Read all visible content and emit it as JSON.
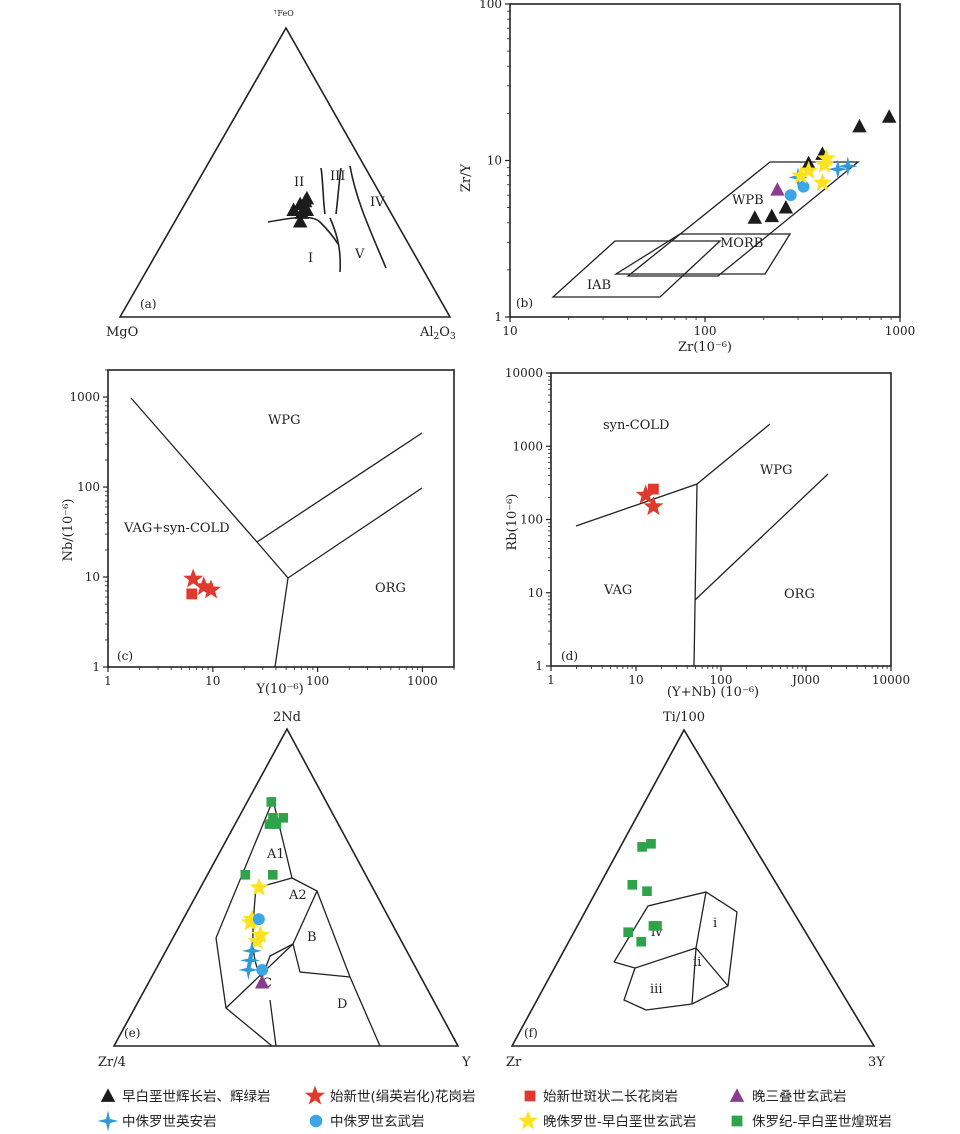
{
  "colors": {
    "black_triangle": "#1c1c1c",
    "red_star": "#e03a2f",
    "red_square": "#e03a2f",
    "purple_triangle": "#8a3d8f",
    "blue_cross": "#2e9ad8",
    "blue_circle": "#3aa6e6",
    "yellow_star": "#ffe21f",
    "green_square": "#2fa24a"
  },
  "legend": [
    {
      "symbol": "black_triangle",
      "label": "早白垩世辉长岩、辉绿岩"
    },
    {
      "symbol": "red_star",
      "label": "始新世(绢英岩化)花岗岩"
    },
    {
      "symbol": "red_square",
      "label": "始新世斑状二长花岗岩"
    },
    {
      "symbol": "purple_triangle",
      "label": "晚三叠世玄武岩"
    },
    {
      "symbol": "blue_cross",
      "label": "中侏罗世英安岩"
    },
    {
      "symbol": "blue_circle",
      "label": "中侏罗世玄武岩"
    },
    {
      "symbol": "yellow_star",
      "label": "晚侏罗世-早白垩世玄武岩"
    },
    {
      "symbol": "green_square",
      "label": "侏罗纪-早白垩世煌斑岩"
    }
  ],
  "chart_data": [
    {
      "panel": "(a)",
      "type": "scatter",
      "subtype": "ternary",
      "vertices": {
        "top": "ᵀFeO",
        "left": "MgO",
        "right_main": "Al",
        "right_sub1": "2",
        "right_mid": "O",
        "right_sub2": "3"
      },
      "fields": [
        "I",
        "II",
        "III",
        "IV",
        "V"
      ],
      "series": [
        {
          "symbol": "black_triangle",
          "points": [
            {
              "FeO": 0.37,
              "MgO": 0.29,
              "Al2O3": 0.34
            },
            {
              "FeO": 0.39,
              "MgO": 0.26,
              "Al2O3": 0.35
            },
            {
              "FeO": 0.4,
              "MgO": 0.24,
              "Al2O3": 0.36
            },
            {
              "FeO": 0.37,
              "MgO": 0.25,
              "Al2O3": 0.38
            },
            {
              "FeO": 0.36,
              "MgO": 0.27,
              "Al2O3": 0.37
            },
            {
              "FeO": 0.33,
              "MgO": 0.29,
              "Al2O3": 0.38
            },
            {
              "FeO": 0.41,
              "MgO": 0.23,
              "Al2O3": 0.36
            }
          ]
        }
      ]
    },
    {
      "panel": "(b)",
      "type": "scatter",
      "xscale": "log",
      "yscale": "log",
      "xlim": [
        10,
        1000
      ],
      "ylim": [
        1,
        100
      ],
      "xticks": [
        "10",
        "100",
        "1000"
      ],
      "yticks": [
        "1",
        "10",
        "100"
      ],
      "xlabel": "Zr(10⁻⁶)",
      "ylabel": "Zr/Y",
      "fields": [
        "IAB",
        "MORB",
        "WPB"
      ],
      "series": [
        {
          "symbol": "black_triangle",
          "points": [
            [
              180,
              4.3
            ],
            [
              220,
              4.4
            ],
            [
              260,
              5.0
            ],
            [
              340,
              9.6
            ],
            [
              400,
              11.0
            ],
            [
              620,
              16.5
            ],
            [
              880,
              19.0
            ]
          ]
        },
        {
          "symbol": "purple_triangle",
          "points": [
            [
              235,
              6.5
            ]
          ]
        },
        {
          "symbol": "blue_circle",
          "points": [
            [
              275,
              6.0
            ],
            [
              320,
              6.8
            ]
          ]
        },
        {
          "symbol": "blue_cross",
          "points": [
            [
              300,
              7.8
            ],
            [
              480,
              8.8
            ],
            [
              540,
              9.2
            ]
          ]
        },
        {
          "symbol": "yellow_star",
          "points": [
            [
              310,
              8.0
            ],
            [
              340,
              8.6
            ],
            [
              400,
              7.2
            ],
            [
              410,
              9.4
            ],
            [
              420,
              10.3
            ]
          ]
        }
      ]
    },
    {
      "panel": "(c)",
      "type": "scatter",
      "xscale": "log",
      "yscale": "log",
      "xlim": [
        1,
        2000
      ],
      "ylim": [
        1,
        2000
      ],
      "xticks": [
        "1",
        "10",
        "100",
        "1000"
      ],
      "yticks": [
        "1",
        "10",
        "100",
        "1000"
      ],
      "xlabel": "Y(10⁻⁶)",
      "ylabel": "Nb/(10⁻⁶)",
      "fields": [
        "WPG",
        "VAG+syn-COLD",
        "ORG"
      ],
      "series": [
        {
          "symbol": "red_star",
          "points": [
            [
              6.5,
              9.5
            ],
            [
              8.2,
              7.8
            ],
            [
              9.6,
              7.2
            ]
          ]
        },
        {
          "symbol": "red_square",
          "points": [
            [
              6.3,
              6.5
            ]
          ]
        }
      ]
    },
    {
      "panel": "(d)",
      "type": "scatter",
      "xscale": "log",
      "yscale": "log",
      "xlim": [
        1,
        10000
      ],
      "ylim": [
        1,
        10000
      ],
      "xticks": [
        "1",
        "10",
        "100",
        "J000",
        "10000"
      ],
      "yticks": [
        "1",
        "10",
        "100",
        "1000",
        "10000"
      ],
      "xlabel": "(Y+Nb) (10⁻⁶)",
      "ylabel": "Rb(10⁻⁶)",
      "fields": [
        "syn-COLD",
        "WPG",
        "VAG",
        "ORG"
      ],
      "series": [
        {
          "symbol": "red_star",
          "points": [
            [
              13,
              215
            ],
            [
              16,
              150
            ]
          ]
        },
        {
          "symbol": "red_square",
          "points": [
            [
              16,
              260
            ]
          ]
        }
      ]
    },
    {
      "panel": "(e)",
      "type": "scatter",
      "subtype": "ternary",
      "vertices": {
        "top": "2Nd",
        "left": "Zr/4",
        "right": "Y"
      },
      "fields": [
        "A1",
        "A2",
        "B",
        "C",
        "D"
      ],
      "series": [
        {
          "symbol": "green_square",
          "points": [
            {
              "Nd": 0.72,
              "Zr": 0.18,
              "Y": 0.1
            },
            {
              "Nd": 0.77,
              "Zr": 0.16,
              "Y": 0.07
            },
            {
              "Nd": 0.72,
              "Zr": 0.15,
              "Y": 0.13
            },
            {
              "Nd": 0.7,
              "Zr": 0.18,
              "Y": 0.12
            },
            {
              "Nd": 0.7,
              "Zr": 0.2,
              "Y": 0.1
            },
            {
              "Nd": 0.54,
              "Zr": 0.27,
              "Y": 0.19
            },
            {
              "Nd": 0.54,
              "Zr": 0.35,
              "Y": 0.11
            }
          ]
        },
        {
          "symbol": "yellow_star",
          "points": [
            {
              "Nd": 0.5,
              "Zr": 0.33,
              "Y": 0.17
            },
            {
              "Nd": 0.4,
              "Zr": 0.4,
              "Y": 0.2
            },
            {
              "Nd": 0.39,
              "Zr": 0.41,
              "Y": 0.2
            },
            {
              "Nd": 0.35,
              "Zr": 0.4,
              "Y": 0.25
            },
            {
              "Nd": 0.33,
              "Zr": 0.42,
              "Y": 0.25
            }
          ]
        },
        {
          "symbol": "blue_circle",
          "points": [
            {
              "Nd": 0.4,
              "Zr": 0.38,
              "Y": 0.22
            },
            {
              "Nd": 0.24,
              "Zr": 0.45,
              "Y": 0.31
            }
          ]
        },
        {
          "symbol": "blue_cross",
          "points": [
            {
              "Nd": 0.3,
              "Zr": 0.45,
              "Y": 0.25
            },
            {
              "Nd": 0.27,
              "Zr": 0.47,
              "Y": 0.26
            },
            {
              "Nd": 0.24,
              "Zr": 0.49,
              "Y": 0.27
            }
          ]
        },
        {
          "symbol": "purple_triangle",
          "points": [
            {
              "Nd": 0.2,
              "Zr": 0.47,
              "Y": 0.33
            }
          ]
        }
      ]
    },
    {
      "panel": "(f)",
      "type": "scatter",
      "subtype": "ternary",
      "vertices": {
        "top": "Ti/100",
        "left": "Zr",
        "right": "3Y"
      },
      "fields": [
        "i",
        "ii",
        "iii",
        "iv"
      ],
      "series": [
        {
          "symbol": "green_square",
          "points": [
            {
              "Ti": 0.63,
              "Zr": 0.31,
              "Y": 0.06
            },
            {
              "Ti": 0.64,
              "Zr": 0.28,
              "Y": 0.08
            },
            {
              "Ti": 0.51,
              "Zr": 0.4,
              "Y": 0.09
            },
            {
              "Ti": 0.49,
              "Zr": 0.37,
              "Y": 0.14
            },
            {
              "Ti": 0.38,
              "Zr": 0.4,
              "Y": 0.22
            },
            {
              "Ti": 0.38,
              "Zr": 0.41,
              "Y": 0.21
            },
            {
              "Ti": 0.36,
              "Zr": 0.49,
              "Y": 0.15
            },
            {
              "Ti": 0.33,
              "Zr": 0.47,
              "Y": 0.2
            }
          ]
        }
      ]
    }
  ]
}
